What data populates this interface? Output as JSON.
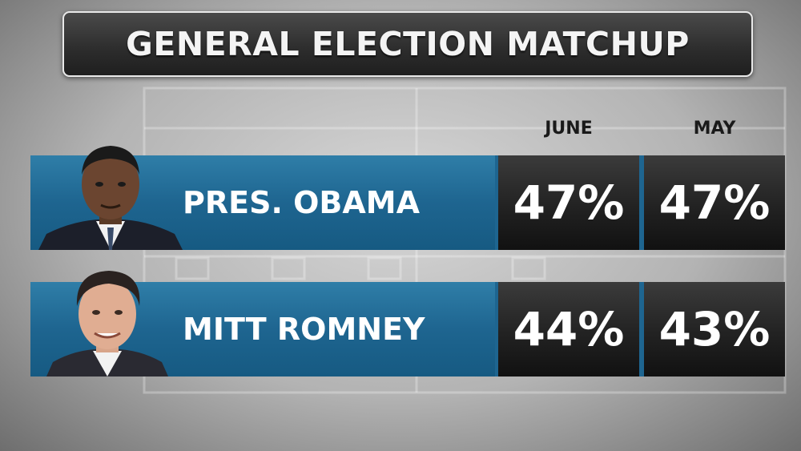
{
  "title": "GENERAL ELECTION MATCHUP",
  "chart_data": {
    "type": "table",
    "title": "GENERAL ELECTION MATCHUP",
    "columns": [
      "JUNE",
      "MAY"
    ],
    "rows": [
      {
        "label": "PRES. OBAMA",
        "values": [
          "47%",
          "47%"
        ]
      },
      {
        "label": "MITT ROMNEY",
        "values": [
          "44%",
          "43%"
        ]
      }
    ]
  },
  "colors": {
    "name_bar": "#1e6590",
    "value_cell": "#222222",
    "title_box": "#2c2c2c"
  }
}
